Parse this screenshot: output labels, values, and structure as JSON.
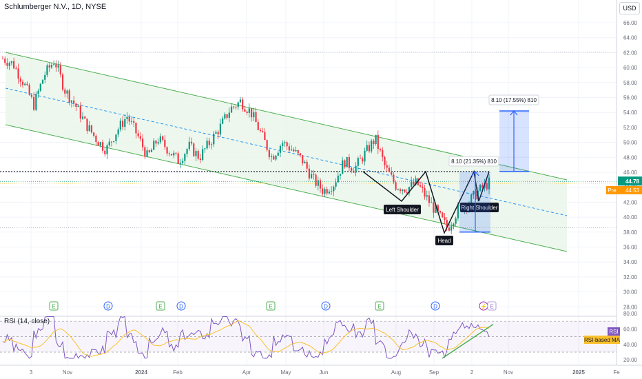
{
  "header": {
    "title": "Schlumberger N.V., 1D, NYSE",
    "currency": "USD"
  },
  "colors": {
    "up": "#089981",
    "down": "#f23645",
    "channel": "#4caf50",
    "channelFill": "#e8f5e9",
    "midline": "#2196f3",
    "target": "#2962ff",
    "rsi": "#7e57c2",
    "rsiMa": "#fbc02d",
    "axis": "#6a6d78"
  },
  "price_axis": {
    "ticks": [
      "66.00",
      "64.00",
      "62.00",
      "60.00",
      "58.00",
      "56.00",
      "54.00",
      "52.00",
      "50.00",
      "48.00",
      "46.00",
      "44.00",
      "42.00",
      "40.00",
      "38.00",
      "36.00",
      "34.00",
      "32.00",
      "30.00",
      "28.00"
    ]
  },
  "price_badges": {
    "last": "44.78",
    "pre_label": "Pre",
    "pre_value": "44.53"
  },
  "rsi_axis": {
    "ticks": [
      "80.00",
      "60.00",
      "40.00",
      "20.00"
    ]
  },
  "rsi_panel": {
    "title": "RSI (14, close)",
    "label": "RSI",
    "ma_label": "RSI-based MA"
  },
  "time_axis": [
    "3",
    "Nov",
    "2024",
    "Feb",
    "Apr",
    "May",
    "Jun",
    "Aug",
    "Sep",
    "2",
    "Nov",
    "2025",
    "Fe"
  ],
  "pattern_labels": {
    "left": "Left Shoulder",
    "head": "Head",
    "right": "Right Shoulder"
  },
  "measure_labels": {
    "first": "8.10 (21.35%) 810",
    "second": "8.10 (17.55%) 810"
  },
  "event_markers": [
    "E",
    "D",
    "E",
    "D",
    "E",
    "D",
    "E",
    "D",
    "⚡",
    "E"
  ],
  "chart_data": {
    "type": "candlestick",
    "title": "Schlumberger N.V., 1D, NYSE",
    "ylim": [
      28,
      66
    ],
    "unit": "USD",
    "x_ticks": [
      "3",
      "Nov",
      "2024",
      "Feb",
      "Apr",
      "May",
      "Jun",
      "Aug",
      "Sep",
      "2",
      "Nov",
      "2025",
      "Fe"
    ],
    "series": [
      {
        "close_path": [
          61.2,
          60.5,
          58,
          55,
          59,
          61,
          57,
          55,
          52.5,
          50.5,
          49,
          51.5,
          53.5,
          51,
          48,
          50.5,
          49,
          47.5,
          49.5,
          48,
          50,
          52,
          54.5,
          55.5,
          54,
          51,
          48,
          50,
          49,
          47.5,
          45,
          43.5,
          44.5,
          47.5,
          46.5,
          48.5,
          50.5,
          46.5,
          44.2,
          43.8,
          44.6,
          42.5,
          40.5,
          38.5,
          41,
          42,
          43.5,
          44.6
        ]
      }
    ],
    "levels": {
      "neckline": 46.1,
      "last": 44.78,
      "pre": 44.53,
      "low": 38.6,
      "high": 62.1
    },
    "measurements": [
      {
        "label": "8.10 (21.35%) 810",
        "from": 38.0,
        "to": 46.1
      },
      {
        "label": "8.10 (17.55%) 810",
        "from": 46.1,
        "to": 54.2
      }
    ],
    "pattern": [
      "Left Shoulder",
      "Head",
      "Right Shoulder"
    ],
    "rsi": {
      "title": "RSI (14, close)",
      "ylim": [
        20,
        80
      ],
      "bands": [
        70,
        50,
        30
      ]
    },
    "legend": "none",
    "grid": true
  }
}
